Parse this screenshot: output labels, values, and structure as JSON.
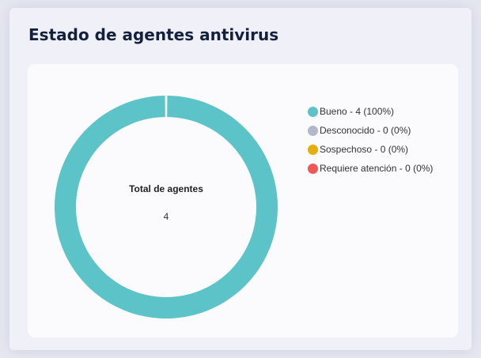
{
  "title": "Estado de agentes antivirus",
  "chart_data": {
    "type": "pie",
    "donut": true,
    "center_label": "Total de agentes",
    "center_value": "4",
    "legend_position": "right",
    "slices": [
      {
        "name": "Bueno",
        "value": 4,
        "percent": "100%",
        "legend": "Bueno - 4 (100%)",
        "color": "#5cc4c8"
      },
      {
        "name": "Desconocido",
        "value": 0,
        "percent": "0%",
        "legend": "Desconocido - 0 (0%)",
        "color": "#b2b8cc"
      },
      {
        "name": "Sospechoso",
        "value": 0,
        "percent": "0%",
        "legend": "Sospechoso - 0 (0%)",
        "color": "#e8ac0c"
      },
      {
        "name": "Requiere atención",
        "value": 0,
        "percent": "0%",
        "legend": "Requiere atención - 0 (0%)",
        "color": "#ef5757"
      }
    ]
  }
}
